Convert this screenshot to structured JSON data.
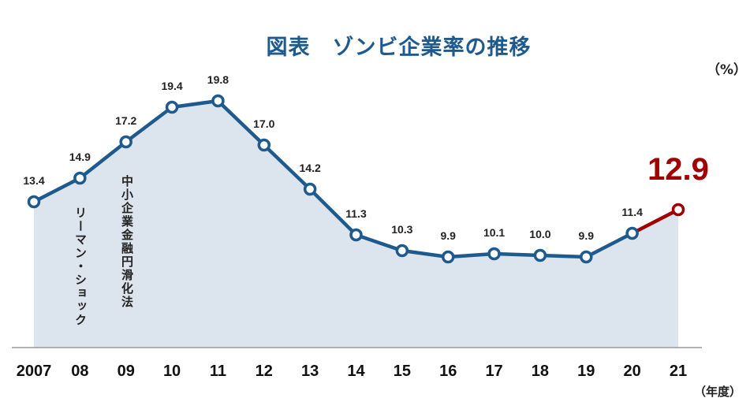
{
  "chart_data": {
    "type": "line",
    "title": "図表　ゾンビ企業率の推移",
    "ylabel": "（%）",
    "xlabel": "（年度）",
    "categories": [
      "2007",
      "08",
      "09",
      "10",
      "11",
      "12",
      "13",
      "14",
      "15",
      "16",
      "17",
      "18",
      "19",
      "20",
      "21"
    ],
    "values": [
      13.4,
      14.9,
      17.2,
      19.4,
      19.8,
      17.0,
      14.2,
      11.3,
      10.3,
      9.9,
      10.1,
      10.0,
      9.9,
      11.4,
      12.9
    ],
    "value_labels": [
      "13.4",
      "14.9",
      "17.2",
      "19.4",
      "19.8",
      "17.0",
      "14.2",
      "11.3",
      "10.3",
      "9.9",
      "10.1",
      "10.0",
      "9.9",
      "11.4",
      "12.9"
    ],
    "ylim": [
      4.15,
      20.5
    ],
    "grid": false,
    "annotations": [
      {
        "text": "リーマン・ショック",
        "category": "08"
      },
      {
        "text": "中小企業金融円滑化法",
        "category": "09"
      }
    ],
    "highlight_last": true,
    "colors": {
      "line": "#1F5A8F",
      "fill": "#DCE4EE",
      "highlight": "#A00000",
      "axis": "#999999"
    }
  }
}
